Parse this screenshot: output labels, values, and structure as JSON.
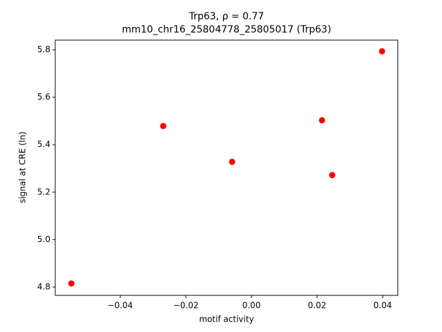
{
  "chart_data": {
    "type": "scatter",
    "title": "Trp63, ρ = 0.77",
    "subtitle": "mm10_chr16_25804778_25805017 (Trp63)",
    "x_label": "motif activity",
    "y_label": "signal at CRE (ln)",
    "color": "#ff0000",
    "x": [
      -0.0549,
      -0.0269,
      -0.0059,
      0.0215,
      0.0246,
      0.0398
    ],
    "values": [
      4.815,
      5.479,
      5.328,
      5.503,
      5.272,
      5.794
    ],
    "xlim": [
      -0.0598,
      0.0446
    ],
    "ylim": [
      4.765,
      5.841
    ],
    "xticks": [
      {
        "value": -0.04,
        "label": "−0.04"
      },
      {
        "value": -0.02,
        "label": "−0.02"
      },
      {
        "value": 0,
        "label": "0.00"
      },
      0.02,
      0.04
    ],
    "yticks": [
      {
        "value": 4.8,
        "label": "4.8"
      },
      {
        "value": 5.0,
        "label": "5.0"
      },
      5.2,
      5.4,
      5.6,
      5.8
    ],
    "grid": false
  }
}
